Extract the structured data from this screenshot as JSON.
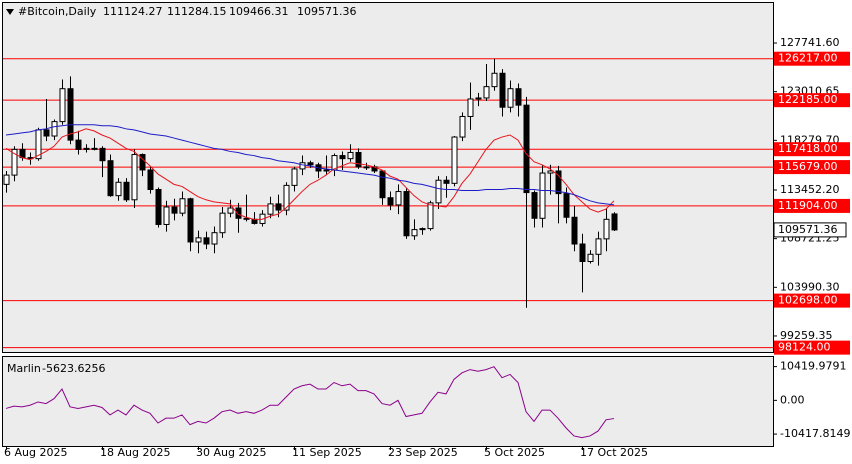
{
  "chart_data": {
    "type": "candlestick",
    "title": "#Bitcoin,Daily",
    "categories": [
      "6 Aug 2025",
      null,
      null,
      null,
      null,
      null,
      null,
      null,
      null,
      null,
      null,
      null,
      "18 Aug 2025",
      null,
      null,
      null,
      null,
      null,
      null,
      null,
      null,
      null,
      null,
      null,
      "30 Aug 2025",
      null,
      null,
      null,
      null,
      null,
      null,
      null,
      null,
      null,
      null,
      null,
      "11 Sep 2025",
      null,
      null,
      null,
      null,
      null,
      null,
      null,
      null,
      null,
      null,
      null,
      "23 Sep 2025",
      null,
      null,
      null,
      null,
      null,
      null,
      null,
      null,
      null,
      null,
      null,
      "5 Oct 2025",
      null,
      null,
      null,
      null,
      null,
      null,
      null,
      null,
      null,
      null,
      null,
      "17 Oct 2025",
      null,
      null,
      null,
      null
    ],
    "open": [
      114000,
      114900,
      117400,
      116600,
      116500,
      119300,
      118700,
      120100,
      123300,
      118300,
      117400,
      117500,
      117500,
      116300,
      112900,
      114200,
      112500,
      116900,
      115400,
      113500,
      110100,
      111800,
      111200,
      112600,
      108400,
      108800,
      108200,
      109300,
      111200,
      111700,
      110700,
      110600,
      110200,
      111100,
      112100,
      111500,
      113900,
      115500,
      116100,
      115900,
      115300,
      115400,
      116800,
      116500,
      117100,
      115700,
      115700,
      115300,
      112700,
      112000,
      113300,
      109000,
      109600,
      109700,
      112200,
      114400,
      114100,
      118600,
      120600,
      122300,
      122400,
      123500,
      124800,
      121500,
      123300,
      121700,
      113200,
      110700,
      115100,
      115300,
      113100,
      110800,
      108200,
      106500,
      107200,
      108700,
      111124.27
    ],
    "high": [
      115300,
      117700,
      118000,
      117100,
      119500,
      122300,
      120300,
      124200,
      124500,
      119200,
      117900,
      118500,
      117700,
      116900,
      114600,
      114600,
      117400,
      117000,
      115700,
      113700,
      112400,
      112600,
      113300,
      112700,
      109500,
      109400,
      109900,
      111800,
      112500,
      112200,
      113000,
      111300,
      111500,
      112800,
      113000,
      114200,
      115700,
      116800,
      116300,
      116100,
      116800,
      117000,
      117200,
      117900,
      117500,
      116100,
      115900,
      115400,
      113300,
      114000,
      113600,
      110600,
      109800,
      112400,
      114800,
      114800,
      118700,
      121000,
      123900,
      122900,
      125700,
      126200,
      125200,
      124100,
      123800,
      122500,
      113400,
      115900,
      115900,
      115800,
      113700,
      111900,
      109200,
      107600,
      109400,
      111700,
      111284.15
    ],
    "low": [
      113200,
      114300,
      116300,
      115900,
      116300,
      118200,
      118300,
      119800,
      117900,
      116900,
      117100,
      117300,
      114700,
      112800,
      112400,
      112300,
      111700,
      114800,
      113100,
      109800,
      109400,
      110500,
      110900,
      107500,
      107300,
      107700,
      107300,
      108800,
      110800,
      109300,
      110400,
      110100,
      109900,
      110700,
      110800,
      111000,
      113300,
      114900,
      115600,
      114600,
      114900,
      114800,
      115400,
      116200,
      115500,
      115400,
      115100,
      112000,
      111500,
      111100,
      108700,
      108600,
      109100,
      109500,
      111600,
      112700,
      113800,
      118200,
      119300,
      121600,
      122100,
      123100,
      120600,
      121000,
      120600,
      102000,
      109800,
      109800,
      113000,
      110200,
      110200,
      107500,
      103500,
      106300,
      106100,
      107500,
      109466.31
    ],
    "close": [
      114900,
      117400,
      116600,
      116500,
      119300,
      118700,
      120100,
      123300,
      118300,
      117400,
      117500,
      117500,
      116300,
      112900,
      114200,
      112500,
      116900,
      115400,
      113500,
      110100,
      111800,
      111200,
      112600,
      108400,
      108800,
      108200,
      109300,
      111200,
      111700,
      110700,
      110600,
      110200,
      111100,
      112100,
      111500,
      113900,
      115500,
      116100,
      115900,
      115300,
      115400,
      116800,
      116500,
      117100,
      115700,
      115700,
      115300,
      112700,
      112000,
      113300,
      109000,
      109600,
      109700,
      112200,
      114400,
      114100,
      118600,
      120600,
      122300,
      122400,
      123500,
      124800,
      121500,
      123300,
      121700,
      113200,
      110700,
      115100,
      115300,
      113100,
      110800,
      108200,
      106500,
      107200,
      108700,
      110600,
      109571.36
    ],
    "bull_color": "#ffffff",
    "bear_color": "#000000",
    "lines": [
      {
        "color": "#e8141c",
        "values": [
          117500,
          117000,
          116600,
          116400,
          116800,
          117200,
          117700,
          118600,
          118900,
          119100,
          119400,
          119200,
          118800,
          118500,
          118000,
          117500,
          117200,
          116500,
          115800,
          115000,
          114500,
          114000,
          113800,
          113300,
          112800,
          112500,
          112300,
          112200,
          112100,
          111100,
          110800,
          110600,
          110600,
          110900,
          111100,
          111700,
          112500,
          113300,
          114000,
          114400,
          114900,
          115500,
          115800,
          116100,
          116000,
          115900,
          115700,
          115400,
          114800,
          114500,
          113700,
          112900,
          112300,
          112000,
          111900,
          111800,
          112800,
          114100,
          115000,
          116200,
          117400,
          118300,
          118600,
          118800,
          118300,
          117000,
          116200,
          115900,
          115500,
          114900,
          114000,
          113000,
          112300,
          111600,
          111300,
          111600,
          112400
        ]
      },
      {
        "color": "#1c1cc8",
        "values": [
          118800,
          118900,
          119000,
          119100,
          119300,
          119400,
          119600,
          119700,
          119800,
          119800,
          119800,
          119800,
          119700,
          119700,
          119600,
          119400,
          119300,
          119100,
          118900,
          118800,
          118700,
          118500,
          118300,
          118100,
          117900,
          117700,
          117500,
          117400,
          117200,
          117100,
          116900,
          116800,
          116600,
          116500,
          116300,
          116200,
          116100,
          115900,
          115800,
          115600,
          115500,
          115400,
          115300,
          115200,
          115100,
          115000,
          114900,
          114700,
          114600,
          114400,
          114300,
          114100,
          114000,
          113800,
          113600,
          113500,
          113500,
          113400,
          113400,
          113400,
          113500,
          113500,
          113500,
          113600,
          113600,
          113500,
          113500,
          113400,
          113400,
          113300,
          113200,
          113000,
          112700,
          112400,
          112200,
          112100,
          112000
        ]
      }
    ],
    "ylim": [
      97700,
      131730
    ],
    "yticks": [
      {
        "value": 127741.6,
        "label": "127741.60"
      },
      123010.65,
      {
        "value": 118279.7,
        "label": "118279.70"
      },
      {
        "value": 113452.2,
        "label": "113452.20"
      },
      108721.25,
      {
        "value": 103990.3,
        "label": "103990.30"
      },
      99259.35
    ],
    "levels": [
      {
        "value": 126217,
        "label": "126217.00"
      },
      {
        "value": 122185,
        "label": "122185.00"
      },
      {
        "value": 117418,
        "label": "117418.00"
      },
      {
        "value": 115679,
        "label": "115679.00"
      },
      {
        "value": 111904,
        "label": "111904.00"
      },
      {
        "value": 102698,
        "label": "102698.00"
      },
      {
        "value": 98124,
        "label": "98124.00"
      }
    ],
    "level_color": "#ff0000",
    "indicator": {
      "type": "line",
      "title": "Marlin",
      "color": "#8b008b",
      "values": [
        -2500,
        -1800,
        -2000,
        -1500,
        -500,
        -1000,
        500,
        3500,
        -2000,
        -2500,
        -2000,
        -1500,
        -2200,
        -4500,
        -3000,
        -4500,
        -1500,
        -3000,
        -4000,
        -7000,
        -5500,
        -5500,
        -4500,
        -7500,
        -6500,
        -7000,
        -5500,
        -3500,
        -3000,
        -4000,
        -3500,
        -4000,
        -3000,
        -1500,
        -1500,
        1000,
        3500,
        4500,
        5000,
        3500,
        3500,
        5500,
        4500,
        5000,
        3000,
        3000,
        2000,
        -1000,
        -1500,
        0,
        -5000,
        -4500,
        -4000,
        -500,
        2500,
        2000,
        6500,
        8500,
        9500,
        9000,
        9500,
        10400,
        7000,
        8000,
        5500,
        -3500,
        -6500,
        -3000,
        -3000,
        -5500,
        -8500,
        -11000,
        -11500,
        -11000,
        -9500,
        -6000,
        -5623.6256
      ],
      "ylim": [
        -14100,
        13700
      ],
      "yticks": [
        10419.9791,
        {
          "value": 0,
          "label": "0.00"
        },
        -10417.8149
      ]
    }
  }
}
